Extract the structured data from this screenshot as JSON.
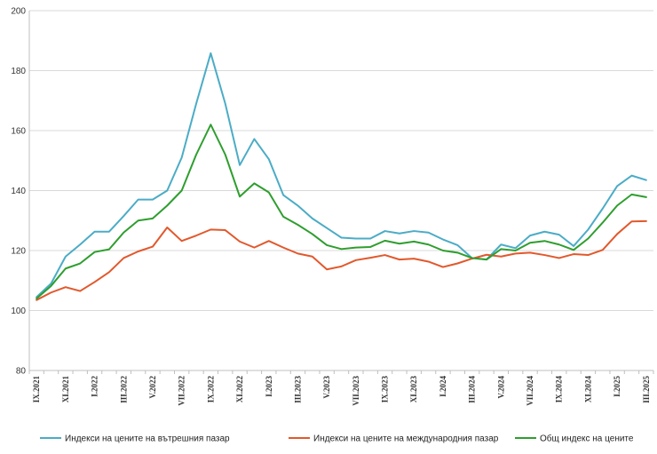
{
  "chart_data": {
    "type": "line",
    "title": "",
    "xlabel": "",
    "ylabel": "",
    "ylim": [
      80,
      200
    ],
    "yticks": [
      80,
      100,
      120,
      140,
      160,
      180,
      200
    ],
    "x_tick_labels": [
      "IX.2021",
      "XI.2021",
      "I.2022",
      "III.2022",
      "V.2022",
      "VII.2022",
      "IX.2022",
      "XI.2022",
      "I.2023",
      "III.2023",
      "V.2023",
      "VII.2023",
      "IX.2023",
      "XI.2023",
      "I.2024",
      "III.2024",
      "V.2024",
      "VII.2024",
      "IX.2024",
      "XI.2024",
      "I.2025",
      "III.2025"
    ],
    "x_start": "IX.2021",
    "n_points": 43,
    "grid": true,
    "legend_position": "bottom",
    "series": [
      {
        "name": "Индекси на цените на вътрешния пазар",
        "color": "#4BACC6",
        "values": [
          104.5,
          109,
          118,
          122,
          126.3,
          126.3,
          131.5,
          137,
          137,
          140,
          151,
          169,
          185.8,
          169,
          148.5,
          157.2,
          150.5,
          138.5,
          135,
          130.7,
          127.5,
          124.3,
          124,
          124,
          126.5,
          125.7,
          126.5,
          126,
          123.7,
          121.8,
          117.5,
          117,
          122,
          120.8,
          125,
          126.3,
          125.3,
          121.5,
          127,
          134,
          141.5,
          145,
          143.5
        ]
      },
      {
        "name": "Индекси на цените на международния пазар",
        "color": "#E2582C",
        "values": [
          103.5,
          106,
          107.8,
          106.5,
          109.5,
          112.8,
          117.5,
          119.7,
          121.3,
          127.7,
          123.2,
          125,
          127,
          126.8,
          123,
          121,
          123.2,
          121,
          119,
          118,
          113.7,
          114.7,
          116.8,
          117.6,
          118.5,
          117,
          117.3,
          116.3,
          114.5,
          115.7,
          117.3,
          118.6,
          118,
          119,
          119.3,
          118.5,
          117.5,
          118.8,
          118.5,
          120.2,
          125.5,
          129.7,
          129.8
        ]
      },
      {
        "name": "Общ индекс на цените",
        "color": "#2E9E2E",
        "values": [
          104,
          108.2,
          114,
          115.7,
          119.5,
          120.4,
          126,
          130,
          130.7,
          135,
          140,
          152,
          162,
          152,
          138,
          142.4,
          139.4,
          131.3,
          128.6,
          125.5,
          121.8,
          120.5,
          121,
          121.2,
          123.3,
          122.3,
          123,
          122,
          120,
          119.3,
          117.5,
          117,
          120.5,
          120,
          122.6,
          123.2,
          122,
          120.2,
          124,
          129.3,
          135,
          138.7,
          137.8
        ]
      }
    ]
  }
}
